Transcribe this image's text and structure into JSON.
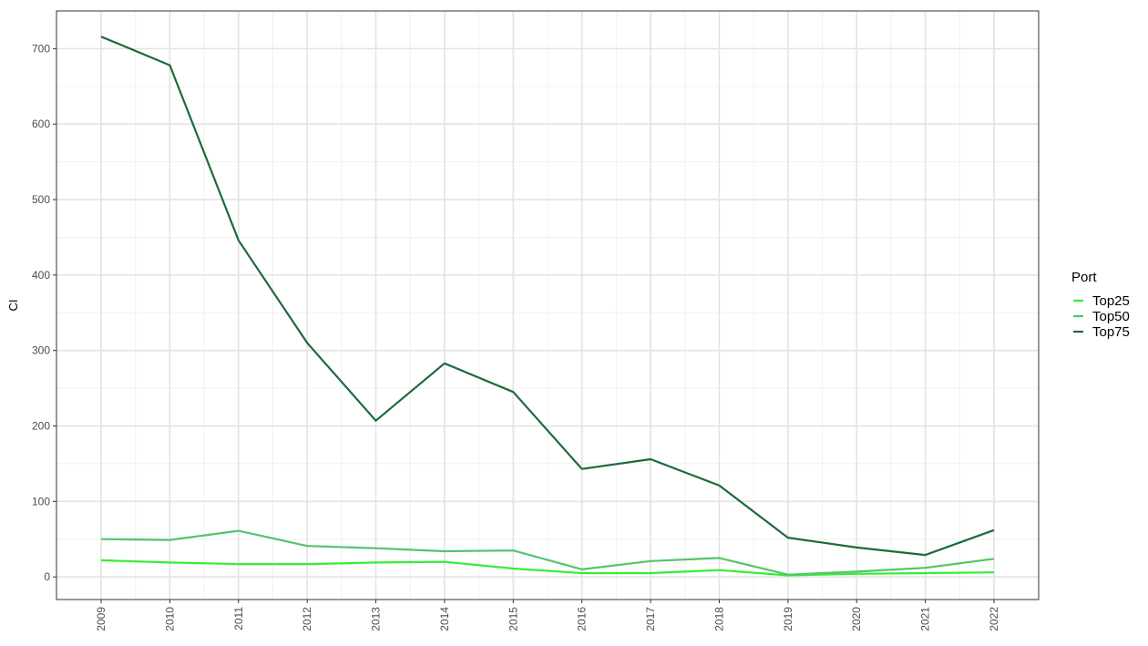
{
  "chart_data": {
    "type": "line",
    "title": "",
    "xlabel": "",
    "ylabel": "CI",
    "x": [
      "2009",
      "2010",
      "2011",
      "2012",
      "2013",
      "2014",
      "2015",
      "2016",
      "2017",
      "2018",
      "2019",
      "2020",
      "2021",
      "2022"
    ],
    "series": [
      {
        "name": "Top25",
        "color": "#33ee33",
        "values": [
          22,
          19,
          17,
          17,
          19,
          20,
          11,
          5,
          5,
          9,
          2,
          4,
          5,
          6
        ]
      },
      {
        "name": "Top50",
        "color": "#55c36b",
        "values": [
          50,
          49,
          61,
          41,
          38,
          34,
          35,
          10,
          21,
          25,
          3,
          7,
          12,
          24
        ]
      },
      {
        "name": "Top75",
        "color": "#1b6b3a",
        "values": [
          716,
          678,
          446,
          310,
          207,
          283,
          245,
          143,
          156,
          121,
          52,
          39,
          29,
          62
        ]
      }
    ],
    "ylim": [
      -30,
      750
    ],
    "yticks": [
      0,
      100,
      200,
      300,
      400,
      500,
      600,
      700
    ],
    "grid": true,
    "legend": {
      "title": "Port",
      "position": "right",
      "entries": [
        "Top25",
        "Top50",
        "Top75"
      ]
    }
  }
}
